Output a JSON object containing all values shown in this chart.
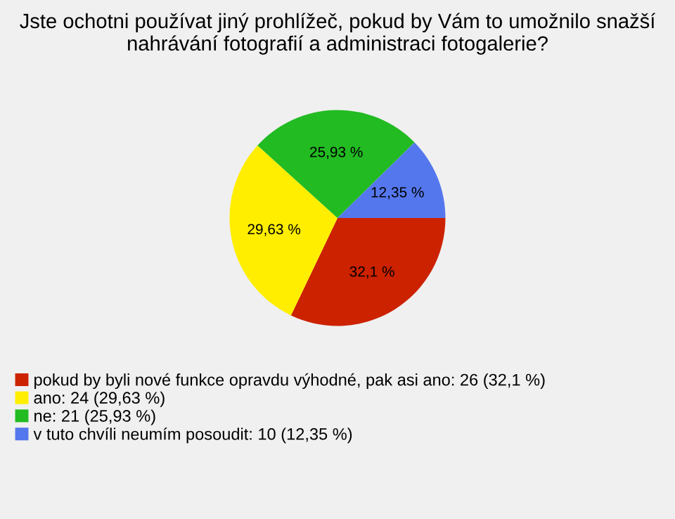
{
  "chart_data": {
    "type": "pie",
    "title": "Jste ochotni používat jiný prohlížeč, pokud by Vám to umožnilo snažší nahrávání fotografií a administraci fotogalerie?",
    "categories": [
      "pokud by byli nové funkce opravdu výhodné, pak asi ano: 26 (32,1 %)",
      "ano: 24 (29,63 %)",
      "ne: 21 (25,93 %)",
      "v tuto chvíli neumím posoudit: 10 (12,35 %)"
    ],
    "values": [
      32.1,
      29.63,
      25.93,
      12.35
    ],
    "value_labels": [
      "32,1 %",
      "29,63 %",
      "25,93 %",
      "12,35 %"
    ],
    "colors": [
      "#cc2200",
      "#ffee00",
      "#22bb22",
      "#5577ee"
    ],
    "legend": "bottom"
  }
}
